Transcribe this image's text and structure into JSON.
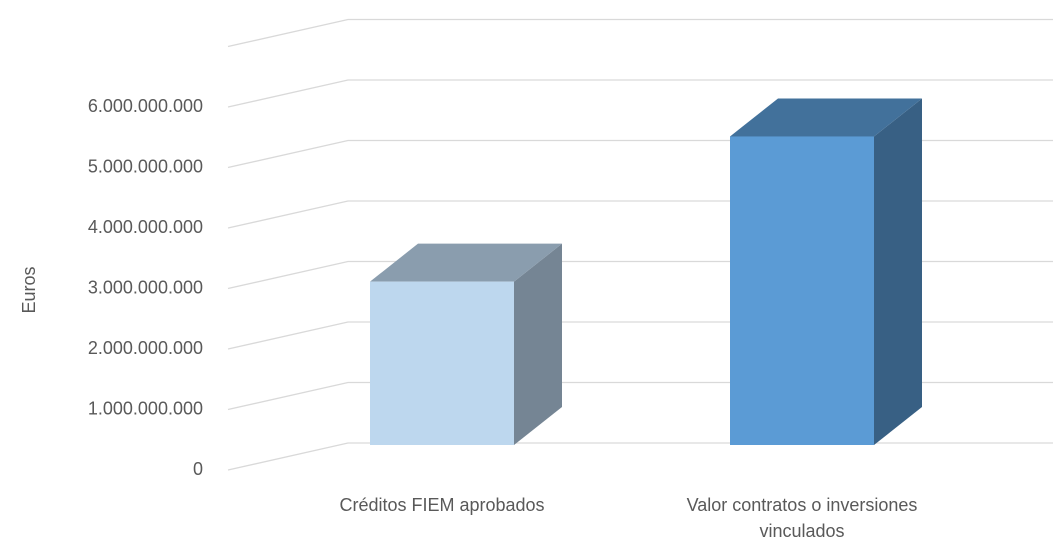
{
  "chart_data": {
    "type": "bar3d",
    "y_label": "Euros",
    "categories": [
      "Créditos FIEM aprobados",
      "Valor contratos o inversiones vinculados"
    ],
    "values": [
      2700000000,
      5100000000
    ],
    "colors": [
      "#bdd7ee",
      "#5b9bd5"
    ],
    "ylim": [
      0,
      7000000000
    ],
    "yticks": [
      0,
      {
        "value": 1000000000,
        "label": "1.000.000.000"
      },
      {
        "value": 2000000000,
        "label": "2.000.000.000"
      },
      {
        "value": 3000000000,
        "label": "3.000.000.000"
      },
      {
        "value": 4000000000,
        "label": "4.000.000.000"
      },
      {
        "value": 5000000000,
        "label": "5.000.000.000"
      },
      {
        "value": 6000000000,
        "label": "6.000.000.000"
      }
    ],
    "grid": true
  }
}
